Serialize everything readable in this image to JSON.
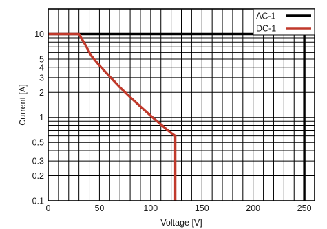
{
  "chart_data": {
    "type": "line",
    "xlabel": "Voltage [V]",
    "ylabel": "Current [A]",
    "xlim": [
      0,
      260
    ],
    "ylim": [
      0.1,
      20
    ],
    "yscale": "log",
    "grid": true,
    "legend_position": "top-right",
    "x_ticks": [
      0,
      50,
      100,
      150,
      200,
      250
    ],
    "x_tick_labels": [
      "0",
      "50",
      "100",
      "150",
      "200",
      "250"
    ],
    "y_ticks": [
      0.1,
      0.2,
      0.3,
      0.5,
      1,
      2,
      3,
      4,
      5,
      10
    ],
    "y_tick_labels": [
      "0.1",
      "0.2",
      "0.3",
      "0.5",
      "1",
      "2",
      "3",
      "4",
      "5",
      "10"
    ],
    "series": [
      {
        "name": "AC-1",
        "color": "#000000",
        "points": [
          [
            0,
            10
          ],
          [
            250,
            10
          ],
          [
            250,
            0.1
          ]
        ]
      },
      {
        "name": "DC-1",
        "color": "#c0392b",
        "points": [
          [
            0,
            10
          ],
          [
            30,
            10
          ],
          [
            36,
            7.5
          ],
          [
            42,
            5.5
          ],
          [
            50,
            4.2
          ],
          [
            60,
            3.1
          ],
          [
            70,
            2.3
          ],
          [
            80,
            1.75
          ],
          [
            90,
            1.35
          ],
          [
            100,
            1.05
          ],
          [
            110,
            0.82
          ],
          [
            120,
            0.65
          ],
          [
            124,
            0.6
          ],
          [
            124,
            0.1
          ]
        ]
      }
    ]
  }
}
